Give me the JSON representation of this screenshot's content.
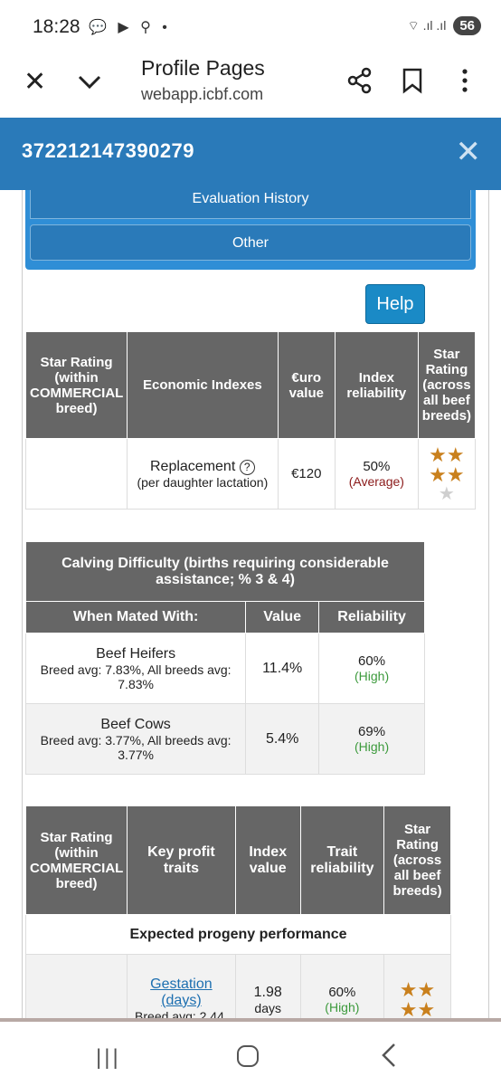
{
  "status_bar": {
    "time": "18:28",
    "left_icons": "💬 ▶ ⚲ •",
    "signal": "⌔ .ıl .ıl",
    "battery": "56"
  },
  "browser": {
    "title": "Profile Pages",
    "url": "webapp.icbf.com"
  },
  "header": {
    "animal_id": "372212147390279",
    "close": "✕"
  },
  "buttons": {
    "evaluation_history": "Evaluation History",
    "other": "Other",
    "help": "Help"
  },
  "economic_table": {
    "headers": [
      "Star Rating (within COMMERCIAL breed)",
      "Economic Indexes",
      "€uro value",
      "Index reliability",
      "Star Rating (across all beef breeds)"
    ],
    "rows": [
      {
        "index": "Replacement",
        "index_note": "(per daughter lactation)",
        "value": "€120",
        "reliability": "50%",
        "reliability_label": "(Average)",
        "stars": 4,
        "max_stars": 5
      }
    ]
  },
  "calving_table": {
    "title": "Calving Difficulty (births requiring considerable assistance; % 3 & 4)",
    "headers": [
      "When Mated With:",
      "Value",
      "Reliability"
    ],
    "rows": [
      {
        "name": "Beef Heifers",
        "note": "Breed avg: 7.83%, All breeds avg: 7.83%",
        "value": "11.4%",
        "reliability": "60%",
        "reliability_label": "(High)"
      },
      {
        "name": "Beef Cows",
        "note": "Breed avg: 3.77%, All breeds avg: 3.77%",
        "value": "5.4%",
        "reliability": "69%",
        "reliability_label": "(High)"
      }
    ]
  },
  "profit_table": {
    "headers": [
      "Star Rating (within COMMERCIAL breed)",
      "Key profit traits",
      "Index value",
      "Trait reliability",
      "Star Rating (across all beef breeds)"
    ],
    "section_title": "Expected progeny performance",
    "rows": [
      {
        "trait": "Gestation (days)",
        "note": "Breed avg: 2.44,",
        "value": "1.98",
        "unit": "days",
        "reliability": "60%",
        "reliability_label": "(High)",
        "stars": 4
      }
    ]
  }
}
